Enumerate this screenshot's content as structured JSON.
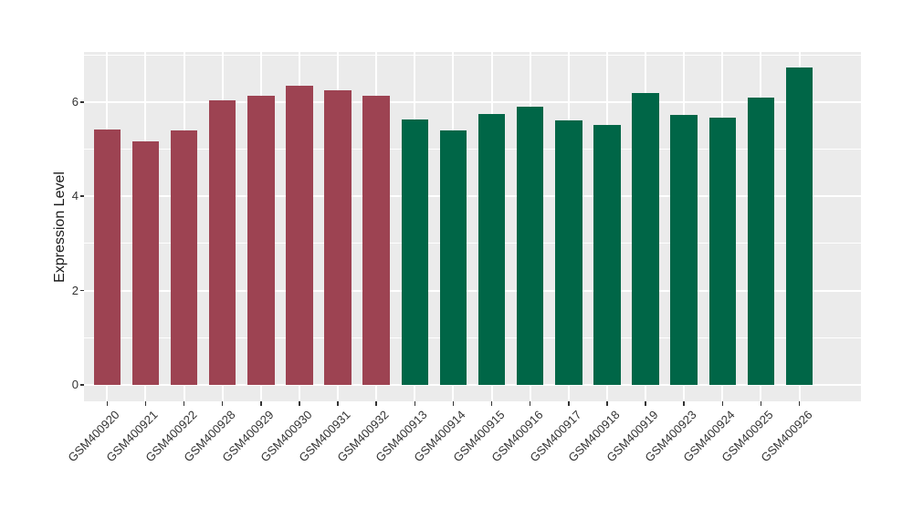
{
  "chart_data": {
    "type": "bar",
    "title": "",
    "xlabel": "",
    "ylabel": "Expression Level",
    "y_ticks": [
      0,
      2,
      4,
      6
    ],
    "y_minor_ticks": [
      1,
      3,
      5,
      7
    ],
    "y_range": [
      -0.35,
      7.06
    ],
    "grid": true,
    "legend": "none",
    "panel_background": "#EBEBEB",
    "gridline_color": "#FFFFFF",
    "axis_text_color": "#333333",
    "group_colors": {
      "group1": "#9D4352",
      "group2": "#006647"
    },
    "categories": [
      "GSM400920",
      "GSM400921",
      "GSM400922",
      "GSM400928",
      "GSM400929",
      "GSM400930",
      "GSM400931",
      "GSM400932",
      "GSM400913",
      "GSM400914",
      "GSM400915",
      "GSM400916",
      "GSM400917",
      "GSM400918",
      "GSM400919",
      "GSM400923",
      "GSM400924",
      "GSM400925",
      "GSM400926"
    ],
    "bars": [
      {
        "label": "GSM400920",
        "value": 5.42,
        "group": "group1"
      },
      {
        "label": "GSM400921",
        "value": 5.17,
        "group": "group1"
      },
      {
        "label": "GSM400922",
        "value": 5.4,
        "group": "group1"
      },
      {
        "label": "GSM400928",
        "value": 6.03,
        "group": "group1"
      },
      {
        "label": "GSM400929",
        "value": 6.14,
        "group": "group1"
      },
      {
        "label": "GSM400930",
        "value": 6.34,
        "group": "group1"
      },
      {
        "label": "GSM400931",
        "value": 6.25,
        "group": "group1"
      },
      {
        "label": "GSM400932",
        "value": 6.13,
        "group": "group1"
      },
      {
        "label": "GSM400913",
        "value": 5.63,
        "group": "group2"
      },
      {
        "label": "GSM400914",
        "value": 5.4,
        "group": "group2"
      },
      {
        "label": "GSM400915",
        "value": 5.74,
        "group": "group2"
      },
      {
        "label": "GSM400916",
        "value": 5.89,
        "group": "group2"
      },
      {
        "label": "GSM400917",
        "value": 5.6,
        "group": "group2"
      },
      {
        "label": "GSM400918",
        "value": 5.51,
        "group": "group2"
      },
      {
        "label": "GSM400919",
        "value": 6.18,
        "group": "group2"
      },
      {
        "label": "GSM400923",
        "value": 5.73,
        "group": "group2"
      },
      {
        "label": "GSM400924",
        "value": 5.66,
        "group": "group2"
      },
      {
        "label": "GSM400925",
        "value": 6.1,
        "group": "group2"
      },
      {
        "label": "GSM400926",
        "value": 6.73,
        "group": "group2"
      }
    ]
  }
}
